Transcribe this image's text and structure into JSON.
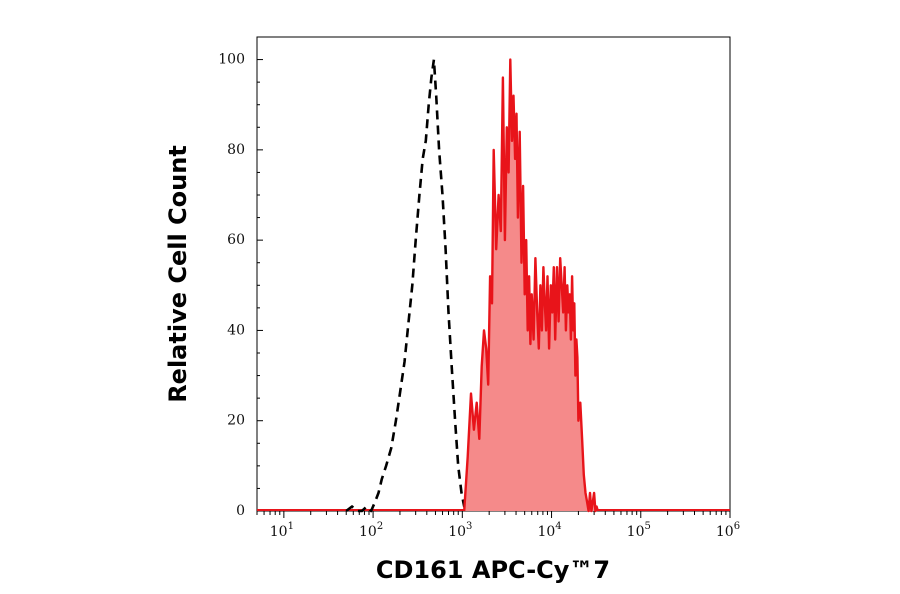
{
  "chart_data": {
    "type": "area",
    "xlabel": "CD161 APC-Cy™7",
    "ylabel": "Relative Cell Count",
    "x_scale": "log",
    "xlim": [
      5,
      1000000
    ],
    "ylim": [
      0,
      105
    ],
    "x_ticks": [
      {
        "base": "10",
        "exp": "1",
        "value": 10
      },
      {
        "base": "10",
        "exp": "2",
        "value": 100
      },
      {
        "base": "10",
        "exp": "3",
        "value": 1000
      },
      {
        "base": "10",
        "exp": "4",
        "value": 10000
      },
      {
        "base": "10",
        "exp": "5",
        "value": 100000
      },
      {
        "base": "10",
        "exp": "6",
        "value": 1000000
      }
    ],
    "y_ticks": [
      {
        "label": "0",
        "value": 0
      },
      {
        "label": "20",
        "value": 20
      },
      {
        "label": "40",
        "value": 40
      },
      {
        "label": "60",
        "value": 60
      },
      {
        "label": "80",
        "value": 80
      },
      {
        "label": "100",
        "value": 100
      }
    ],
    "grid": false,
    "legend": "none",
    "series": [
      {
        "style": "dashed-line",
        "color": "#000000",
        "x": [
          50,
          58,
          66,
          75,
          85,
          95,
          105,
          115,
          125,
          140,
          160,
          180,
          200,
          225,
          250,
          275,
          300,
          330,
          360,
          390,
          420,
          450,
          480,
          510,
          550,
          600,
          650,
          700,
          760,
          830,
          900,
          980,
          1050,
          1150
        ],
        "y": [
          0,
          1,
          0,
          0,
          1,
          0,
          2,
          4,
          7,
          10,
          14,
          20,
          26,
          33,
          42,
          50,
          60,
          70,
          78,
          82,
          90,
          96,
          100,
          92,
          80,
          70,
          58,
          44,
          32,
          20,
          10,
          4,
          1,
          0
        ]
      },
      {
        "style": "filled",
        "color": "#e8141a",
        "fill": "#f58a8a",
        "x": [
          1050,
          1150,
          1250,
          1350,
          1450,
          1550,
          1650,
          1750,
          1850,
          1950,
          2050,
          2150,
          2250,
          2400,
          2550,
          2700,
          2850,
          3000,
          3150,
          3300,
          3450,
          3600,
          3750,
          3900,
          4050,
          4200,
          4400,
          4600,
          4800,
          5000,
          5200,
          5400,
          5600,
          5800,
          6000,
          6300,
          6600,
          6900,
          7200,
          7500,
          7800,
          8100,
          8400,
          8700,
          9000,
          9400,
          9800,
          10200,
          10600,
          11000,
          11500,
          12000,
          12500,
          13000,
          13500,
          14000,
          14500,
          15000,
          15500,
          16000,
          16500,
          17000,
          17500,
          18000,
          18500,
          19000,
          19500,
          20000,
          21000,
          22000,
          23000,
          24000,
          25000,
          26000,
          27000,
          28000,
          29000,
          30000,
          31000,
          32000,
          33000
        ],
        "y": [
          0,
          12,
          26,
          18,
          24,
          16,
          32,
          40,
          36,
          28,
          52,
          46,
          80,
          58,
          70,
          62,
          96,
          60,
          85,
          75,
          100,
          82,
          92,
          78,
          88,
          65,
          84,
          55,
          72,
          48,
          60,
          40,
          52,
          37,
          48,
          38,
          56,
          44,
          36,
          50,
          40,
          54,
          46,
          40,
          52,
          36,
          50,
          44,
          54,
          38,
          54,
          42,
          56,
          50,
          44,
          54,
          40,
          50,
          44,
          48,
          38,
          52,
          40,
          46,
          30,
          38,
          34,
          20,
          24,
          16,
          8,
          4,
          2,
          0,
          4,
          0,
          2,
          4,
          0,
          1,
          0
        ]
      }
    ]
  }
}
